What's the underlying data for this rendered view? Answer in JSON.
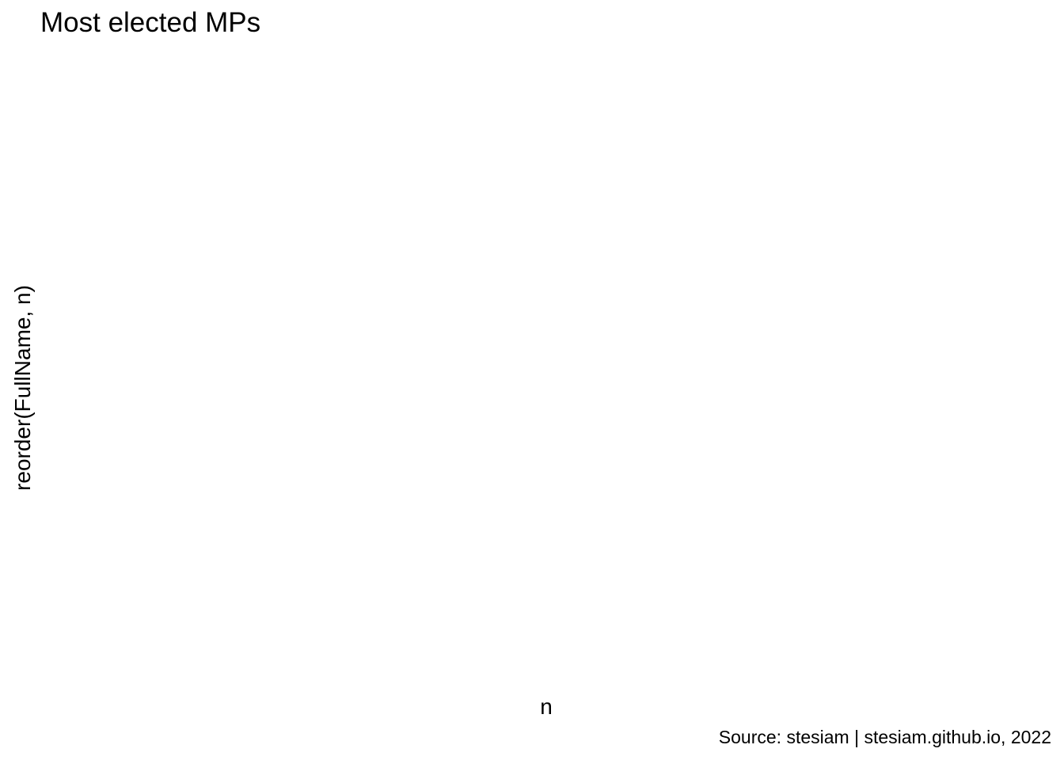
{
  "chart_data": {
    "type": "bar",
    "title": "Most elected MPs",
    "xlabel": "n",
    "ylabel": "reorder(FullName, n)",
    "caption": "Source: stesiam | stesiam.github.io, 2022",
    "categories": [],
    "values": [],
    "grid": false
  }
}
